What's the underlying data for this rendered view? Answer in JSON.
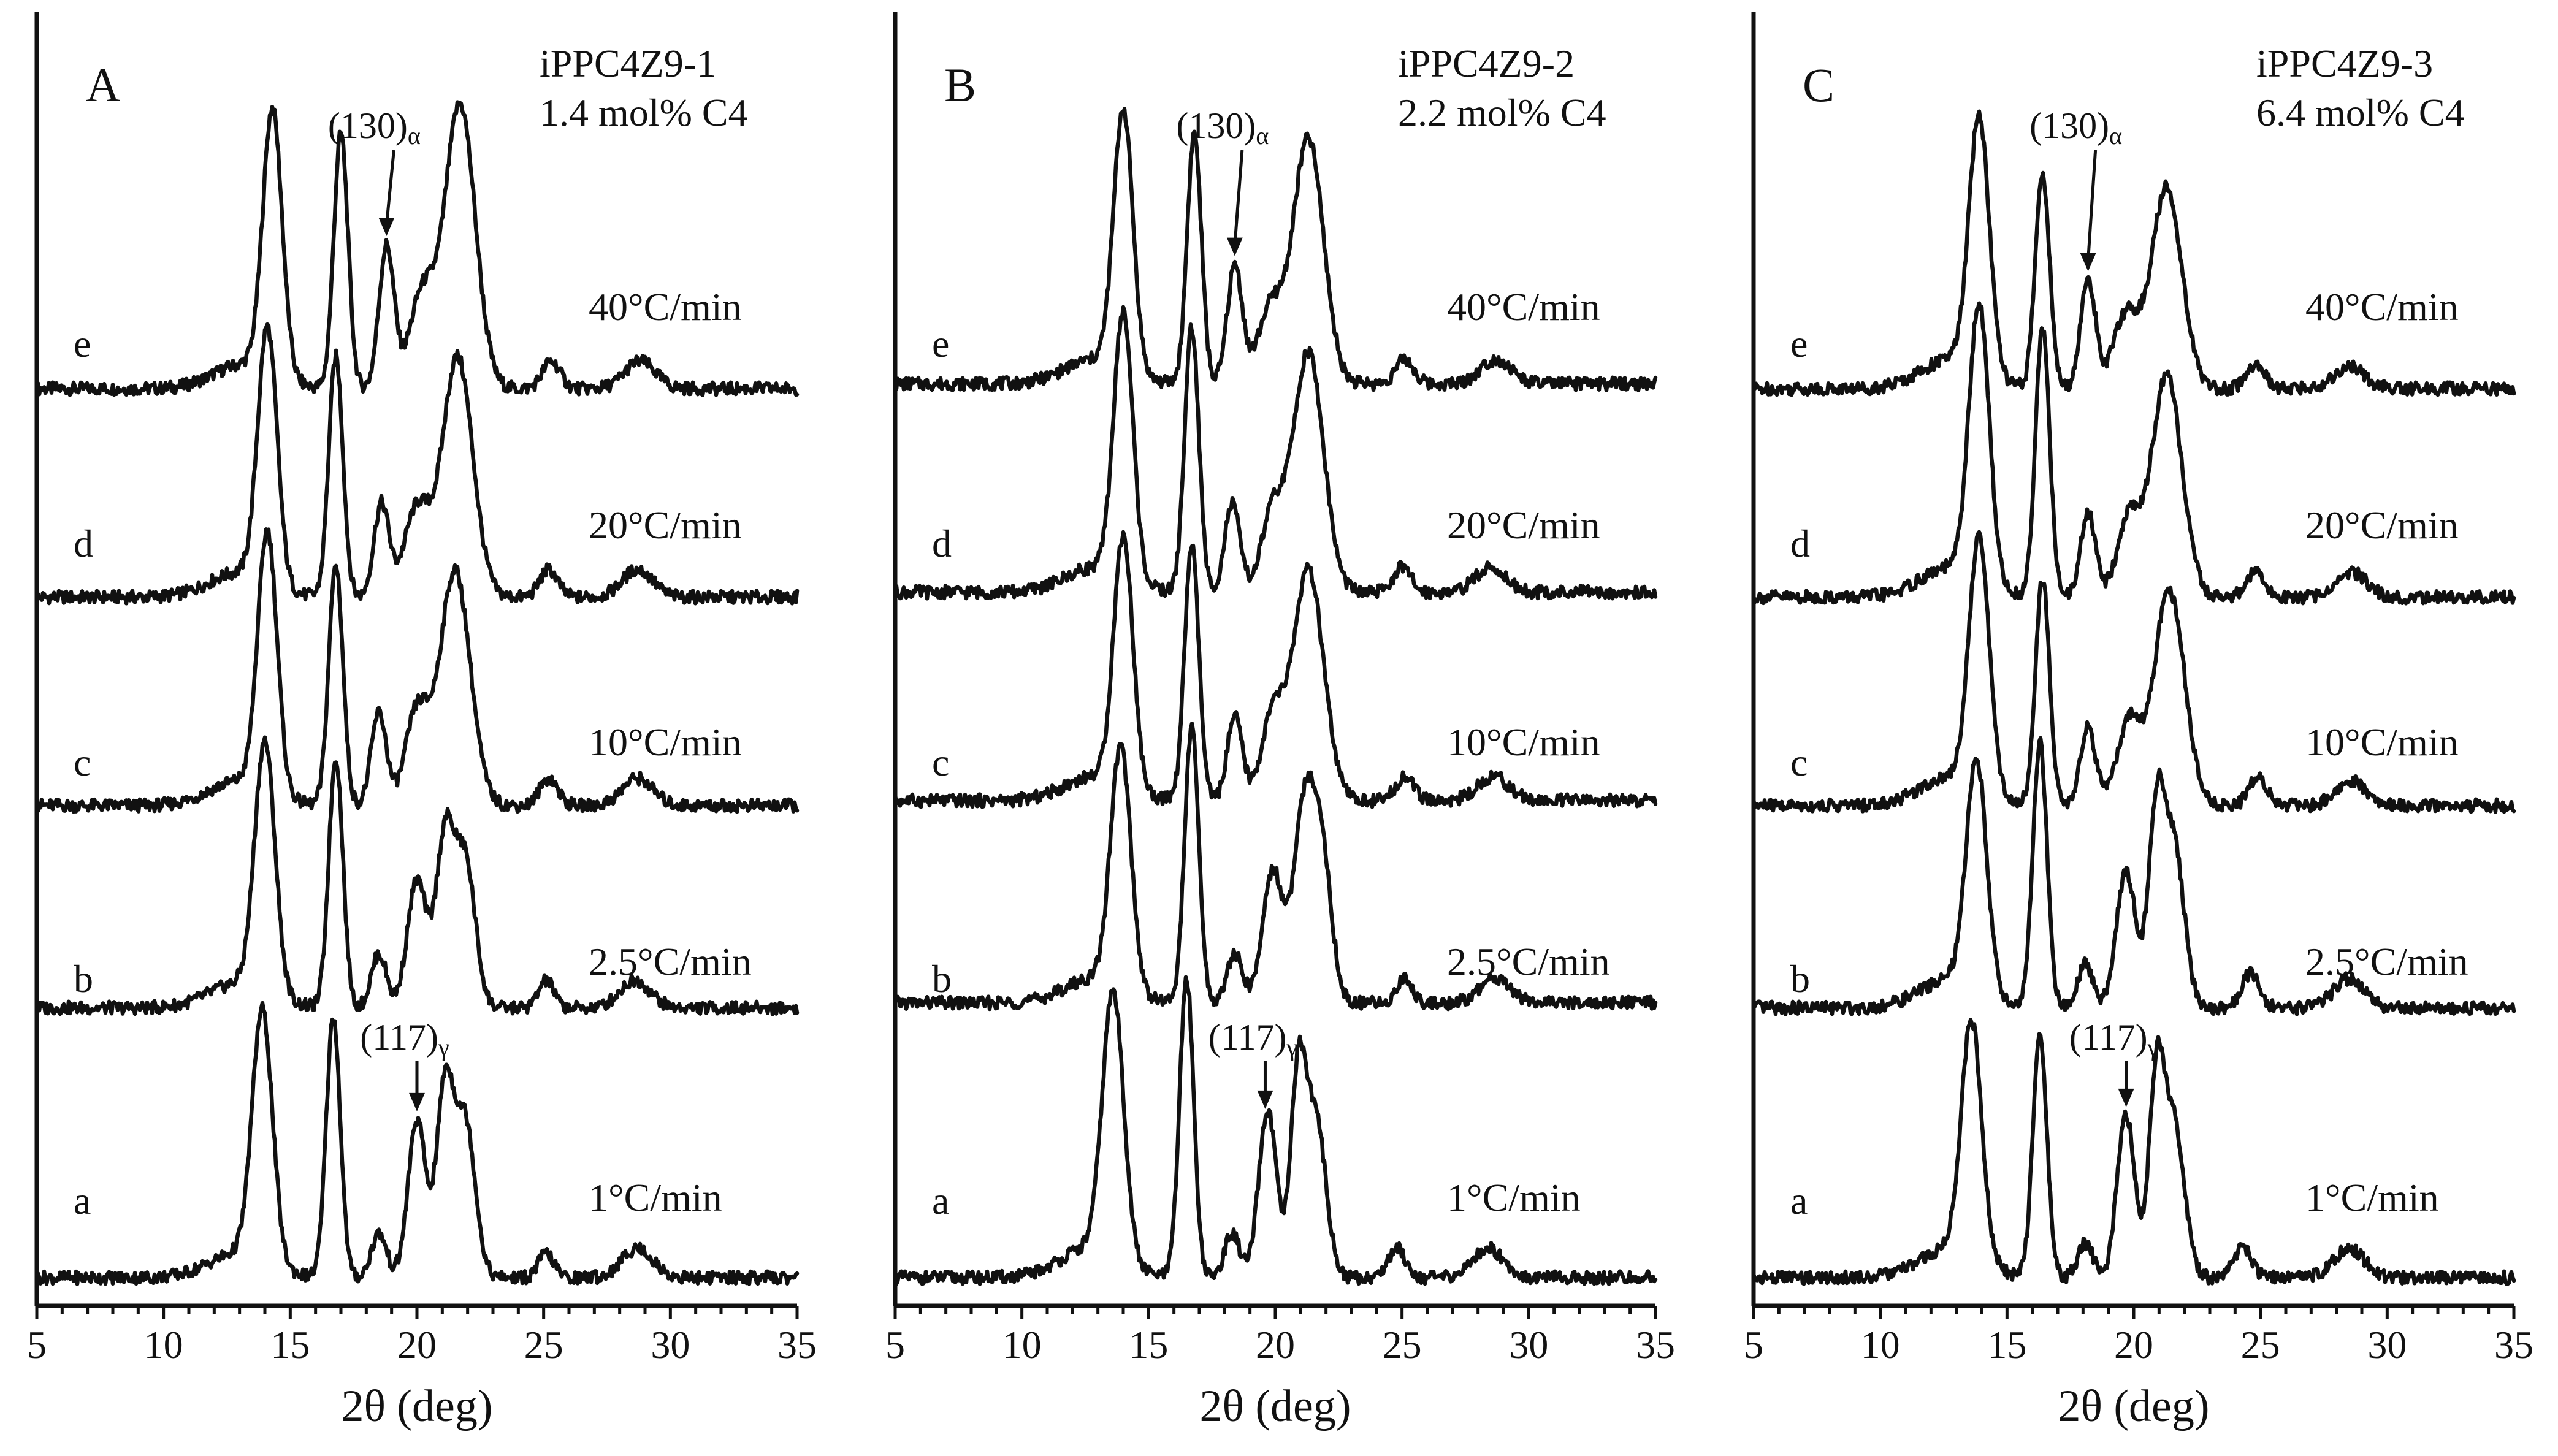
{
  "chart_data": [
    {
      "type": "line",
      "panel_letter": "A",
      "sample": "iPPC4Z9-1",
      "comonomer": "1.4 mol% C4",
      "xlabel": "2θ (deg)",
      "xlim": [
        5,
        35
      ],
      "xticks": [
        "5",
        "10",
        "15",
        "20",
        "25",
        "30",
        "35"
      ],
      "annotation_top": {
        "main": "(130)",
        "sub": "α",
        "x": 18.8,
        "series": "e"
      },
      "annotation_bottom": {
        "main": "(117)",
        "sub": "γ",
        "x": 20.0,
        "series": "a"
      },
      "series": [
        {
          "name": "e",
          "rate": "40°C/min",
          "baseline": 0.1,
          "peaks": [
            [
              13.2,
              0.25,
              1.2
            ],
            [
              14.3,
              2.7,
              0.38
            ],
            [
              17.0,
              2.6,
              0.28
            ],
            [
              18.8,
              1.45,
              0.3
            ],
            [
              20.2,
              0.95,
              0.5
            ],
            [
              21.7,
              2.9,
              0.6
            ],
            [
              25.3,
              0.28,
              0.35
            ],
            [
              28.8,
              0.28,
              0.6
            ]
          ]
        },
        {
          "name": "d",
          "rate": "20°C/min",
          "baseline": 0.1,
          "peaks": [
            [
              13.0,
              0.25,
              1.2
            ],
            [
              14.1,
              2.6,
              0.38
            ],
            [
              16.8,
              2.45,
              0.28
            ],
            [
              18.6,
              0.95,
              0.3
            ],
            [
              20.0,
              0.9,
              0.5
            ],
            [
              21.6,
              2.45,
              0.6
            ],
            [
              25.2,
              0.28,
              0.35
            ],
            [
              28.7,
              0.28,
              0.6
            ]
          ]
        },
        {
          "name": "c",
          "rate": "10°C/min",
          "baseline": 0.1,
          "peaks": [
            [
              13.0,
              0.25,
              1.2
            ],
            [
              14.1,
              2.65,
              0.38
            ],
            [
              16.8,
              2.45,
              0.28
            ],
            [
              18.5,
              0.95,
              0.3
            ],
            [
              20.0,
              0.95,
              0.45
            ],
            [
              21.5,
              2.4,
              0.6
            ],
            [
              25.2,
              0.28,
              0.35
            ],
            [
              28.7,
              0.28,
              0.6
            ]
          ]
        },
        {
          "name": "b",
          "rate": "2.5°C/min",
          "baseline": 0.1,
          "peaks": [
            [
              13.0,
              0.25,
              1.2
            ],
            [
              14.0,
              2.55,
              0.4
            ],
            [
              16.8,
              2.55,
              0.28
            ],
            [
              18.5,
              0.55,
              0.3
            ],
            [
              20.0,
              1.3,
              0.38
            ],
            [
              21.1,
              1.7,
              0.35
            ],
            [
              21.9,
              1.5,
              0.4
            ],
            [
              25.1,
              0.28,
              0.3
            ],
            [
              28.6,
              0.28,
              0.6
            ]
          ]
        },
        {
          "name": "a",
          "rate": "1°C/min",
          "baseline": 0.1,
          "peaks": [
            [
              13.0,
              0.25,
              1.2
            ],
            [
              13.9,
              2.55,
              0.4
            ],
            [
              16.7,
              2.65,
              0.28
            ],
            [
              18.5,
              0.45,
              0.3
            ],
            [
              20.0,
              1.6,
              0.35
            ],
            [
              21.1,
              1.9,
              0.33
            ],
            [
              21.9,
              1.6,
              0.4
            ],
            [
              25.1,
              0.25,
              0.3
            ],
            [
              28.7,
              0.3,
              0.6
            ]
          ]
        }
      ]
    },
    {
      "type": "line",
      "panel_letter": "B",
      "sample": "iPPC4Z9-2",
      "comonomer": "2.2 mol% C4",
      "xlabel": "2θ (deg)",
      "xlim": [
        5,
        35
      ],
      "xticks": [
        "5",
        "10",
        "15",
        "20",
        "25",
        "30",
        "35"
      ],
      "annotation_top": {
        "main": "(130)",
        "sub": "α",
        "x": 18.4,
        "series": "e"
      },
      "annotation_bottom": {
        "main": "(117)",
        "sub": "γ",
        "x": 19.6,
        "series": "a"
      },
      "series": [
        {
          "name": "e",
          "rate": "40°C/min",
          "baseline": 0.15,
          "peaks": [
            [
              12.9,
              0.25,
              1.2
            ],
            [
              14.0,
              2.65,
              0.38
            ],
            [
              16.8,
              2.55,
              0.28
            ],
            [
              18.4,
              1.2,
              0.3
            ],
            [
              19.8,
              0.75,
              0.5
            ],
            [
              21.3,
              2.5,
              0.6
            ],
            [
              25.1,
              0.25,
              0.35
            ],
            [
              28.7,
              0.25,
              0.6
            ]
          ]
        },
        {
          "name": "d",
          "rate": "20°C/min",
          "baseline": 0.15,
          "peaks": [
            [
              12.9,
              0.25,
              1.2
            ],
            [
              14.0,
              2.7,
              0.38
            ],
            [
              16.7,
              2.7,
              0.28
            ],
            [
              18.3,
              0.9,
              0.3
            ],
            [
              19.9,
              0.8,
              0.45
            ],
            [
              21.3,
              2.45,
              0.6
            ],
            [
              25.0,
              0.25,
              0.35
            ],
            [
              28.5,
              0.25,
              0.6
            ]
          ]
        },
        {
          "name": "c",
          "rate": "10°C/min",
          "baseline": 0.15,
          "peaks": [
            [
              12.9,
              0.25,
              1.2
            ],
            [
              14.0,
              2.55,
              0.38
            ],
            [
              16.7,
              2.6,
              0.28
            ],
            [
              18.4,
              0.85,
              0.3
            ],
            [
              19.9,
              0.85,
              0.45
            ],
            [
              21.3,
              2.35,
              0.6
            ],
            [
              25.1,
              0.25,
              0.35
            ],
            [
              28.6,
              0.25,
              0.6
            ]
          ]
        },
        {
          "name": "b",
          "rate": "2.5°C/min",
          "baseline": 0.15,
          "peaks": [
            [
              12.9,
              0.25,
              1.2
            ],
            [
              13.9,
              2.45,
              0.4
            ],
            [
              16.7,
              2.8,
              0.28
            ],
            [
              18.4,
              0.5,
              0.3
            ],
            [
              19.9,
              1.35,
              0.4
            ],
            [
              21.1,
              1.8,
              0.4
            ],
            [
              21.8,
              1.55,
              0.4
            ],
            [
              25.1,
              0.25,
              0.3
            ],
            [
              28.7,
              0.25,
              0.6
            ]
          ]
        },
        {
          "name": "a",
          "rate": "1°C/min",
          "baseline": 0.1,
          "peaks": [
            [
              12.7,
              0.3,
              1.2
            ],
            [
              13.6,
              2.7,
              0.42
            ],
            [
              16.5,
              3.05,
              0.28
            ],
            [
              18.3,
              0.45,
              0.3
            ],
            [
              19.7,
              1.7,
              0.35
            ],
            [
              20.9,
              2.0,
              0.3
            ],
            [
              21.6,
              1.6,
              0.4
            ],
            [
              24.8,
              0.3,
              0.35
            ],
            [
              28.4,
              0.3,
              0.6
            ]
          ]
        }
      ]
    },
    {
      "type": "line",
      "panel_letter": "C",
      "sample": "iPPC4Z9-3",
      "comonomer": "6.4 mol% C4",
      "xlabel": "2θ (deg)",
      "xlim": [
        5,
        35
      ],
      "xticks": [
        "5",
        "10",
        "15",
        "20",
        "25",
        "30",
        "35"
      ],
      "annotation_top": {
        "main": "(130)",
        "sub": "α",
        "x": 18.2,
        "series": "e"
      },
      "annotation_bottom": {
        "main": "(117)",
        "sub": "γ",
        "x": 19.7,
        "series": "a"
      },
      "series": [
        {
          "name": "e",
          "rate": "40°C/min",
          "baseline": 0.1,
          "peaks": [
            [
              12.8,
              0.3,
              1.2
            ],
            [
              13.9,
              2.6,
              0.4
            ],
            [
              16.4,
              2.2,
              0.28
            ],
            [
              18.2,
              1.1,
              0.3
            ],
            [
              19.7,
              0.75,
              0.5
            ],
            [
              21.3,
              2.05,
              0.6
            ],
            [
              24.8,
              0.25,
              0.35
            ],
            [
              28.5,
              0.22,
              0.6
            ]
          ]
        },
        {
          "name": "d",
          "rate": "20°C/min",
          "baseline": 0.1,
          "peaks": [
            [
              12.8,
              0.3,
              1.2
            ],
            [
              13.9,
              2.8,
              0.4
            ],
            [
              16.4,
              2.75,
              0.28
            ],
            [
              18.2,
              0.85,
              0.3
            ],
            [
              19.8,
              0.8,
              0.45
            ],
            [
              21.3,
              2.25,
              0.6
            ],
            [
              24.8,
              0.25,
              0.35
            ],
            [
              28.6,
              0.25,
              0.6
            ]
          ]
        },
        {
          "name": "c",
          "rate": "10°C/min",
          "baseline": 0.1,
          "peaks": [
            [
              12.8,
              0.3,
              1.2
            ],
            [
              13.9,
              2.55,
              0.4
            ],
            [
              16.4,
              2.3,
              0.28
            ],
            [
              18.2,
              0.8,
              0.3
            ],
            [
              19.8,
              0.85,
              0.45
            ],
            [
              21.4,
              2.2,
              0.6
            ],
            [
              24.9,
              0.3,
              0.35
            ],
            [
              28.6,
              0.25,
              0.6
            ]
          ]
        },
        {
          "name": "b",
          "rate": "2.5°C/min",
          "baseline": 0.1,
          "peaks": [
            [
              12.8,
              0.3,
              1.2
            ],
            [
              13.8,
              2.35,
              0.4
            ],
            [
              16.3,
              2.7,
              0.28
            ],
            [
              18.1,
              0.45,
              0.3
            ],
            [
              19.7,
              1.4,
              0.38
            ],
            [
              20.9,
              1.95,
              0.32
            ],
            [
              21.6,
              1.6,
              0.4
            ],
            [
              24.6,
              0.35,
              0.35
            ],
            [
              28.5,
              0.3,
              0.6
            ]
          ]
        },
        {
          "name": "a",
          "rate": "1°C/min",
          "baseline": 0.1,
          "peaks": [
            [
              12.8,
              0.3,
              1.2
            ],
            [
              13.6,
              2.4,
              0.4
            ],
            [
              16.3,
              2.45,
              0.28
            ],
            [
              18.1,
              0.35,
              0.3
            ],
            [
              19.7,
              1.65,
              0.35
            ],
            [
              20.9,
              2.0,
              0.3
            ],
            [
              21.6,
              1.55,
              0.4
            ],
            [
              24.3,
              0.3,
              0.35
            ],
            [
              28.5,
              0.3,
              0.6
            ]
          ]
        }
      ]
    }
  ]
}
